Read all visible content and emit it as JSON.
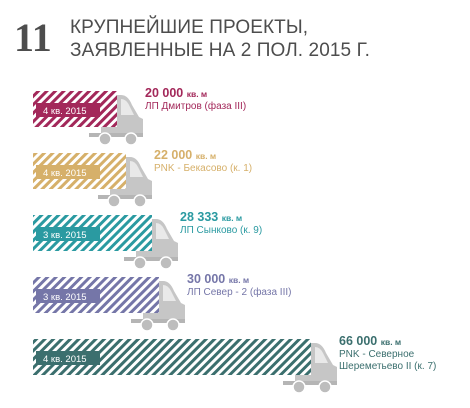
{
  "header": {
    "number": "11",
    "title_line1": "КРУПНЕЙШИЕ ПРОЕКТЫ,",
    "title_line2": "ЗАЯВЛЕННЫЕ НА 2 ПОЛ. 2015 Г."
  },
  "chart_data": {
    "type": "bar",
    "orientation": "horizontal",
    "title": "КРУПНЕЙШИЕ ПРОЕКТЫ, ЗАЯВЛЕННЫЕ НА 2 ПОЛ. 2015 Г.",
    "unit": "кв. м",
    "bars": [
      {
        "value": 20000,
        "value_label": "20 000",
        "unit": "кв. м",
        "project": [
          "ЛП Дмитров (фаза III)"
        ],
        "period": "4 кв. 2015",
        "color": "#a3285a"
      },
      {
        "value": 22000,
        "value_label": "22 000",
        "unit": "кв. м",
        "project": [
          "PNK - Бекасово (к. 1)"
        ],
        "period": "4 кв. 2015",
        "color": "#d6b06a"
      },
      {
        "value": 28333,
        "value_label": "28 333",
        "unit": "кв. м",
        "project": [
          "ЛП Сынково (к. 9)"
        ],
        "period": "3 кв. 2015",
        "color": "#2a9aa1"
      },
      {
        "value": 30000,
        "value_label": "30 000",
        "unit": "кв. м",
        "project": [
          "ЛП Север - 2 (фаза III)"
        ],
        "period": "3 кв. 2015",
        "color": "#7576a8"
      },
      {
        "value": 66000,
        "value_label": "66 000",
        "unit": "кв. м",
        "project": [
          "PNK - Северное",
          "Шереметьево II (к. 7)"
        ],
        "period": "4 кв. 2015",
        "color": "#3b6f6e"
      }
    ]
  },
  "icons": {
    "truck": "truck-cab-icon"
  }
}
